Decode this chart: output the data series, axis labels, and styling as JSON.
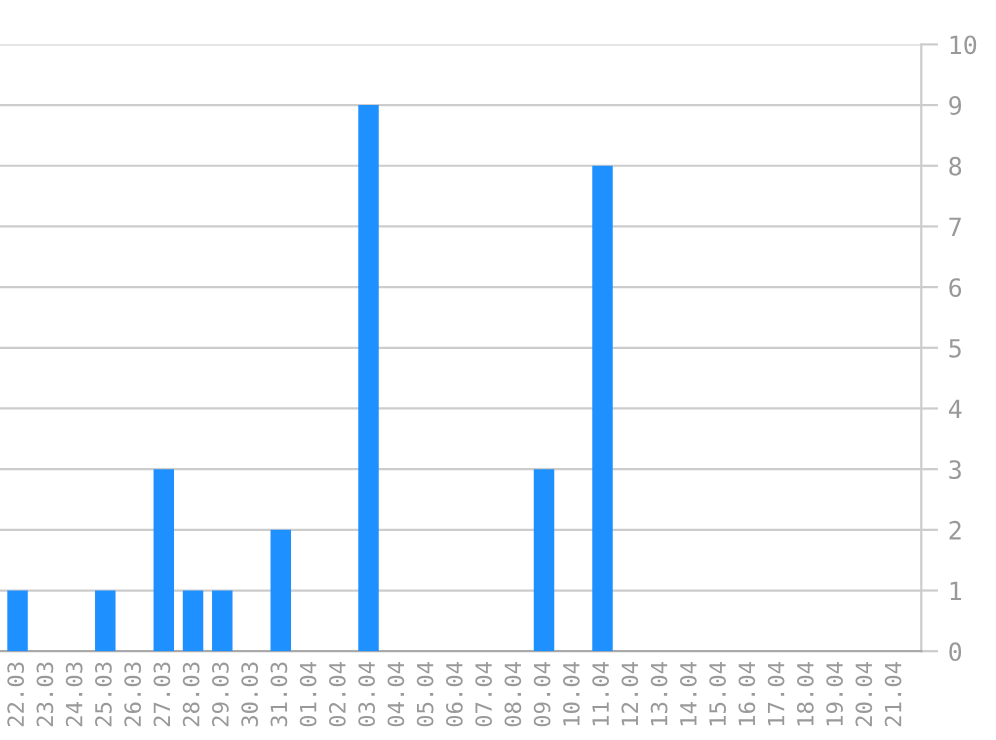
{
  "chart_data": {
    "type": "bar",
    "categories": [
      "22.03",
      "23.03",
      "24.03",
      "25.03",
      "26.03",
      "27.03",
      "28.03",
      "29.03",
      "30.03",
      "31.03",
      "01.04",
      "02.04",
      "03.04",
      "04.04",
      "05.04",
      "06.04",
      "07.04",
      "08.04",
      "09.04",
      "10.04",
      "11.04",
      "12.04",
      "13.04",
      "14.04",
      "15.04",
      "16.04",
      "17.04",
      "18.04",
      "19.04",
      "20.04",
      "21.04"
    ],
    "values": [
      1,
      0,
      0,
      1,
      0,
      3,
      1,
      1,
      0,
      2,
      0,
      0,
      9,
      0,
      0,
      0,
      0,
      0,
      3,
      0,
      8,
      0,
      0,
      0,
      0,
      0,
      0,
      0,
      0,
      0,
      0
    ],
    "color": "#1e90ff",
    "ylim": [
      0,
      10
    ],
    "yticks": [
      0,
      1,
      2,
      3,
      4,
      5,
      6,
      7,
      8,
      9,
      10
    ],
    "grid": "y",
    "legend": false
  }
}
